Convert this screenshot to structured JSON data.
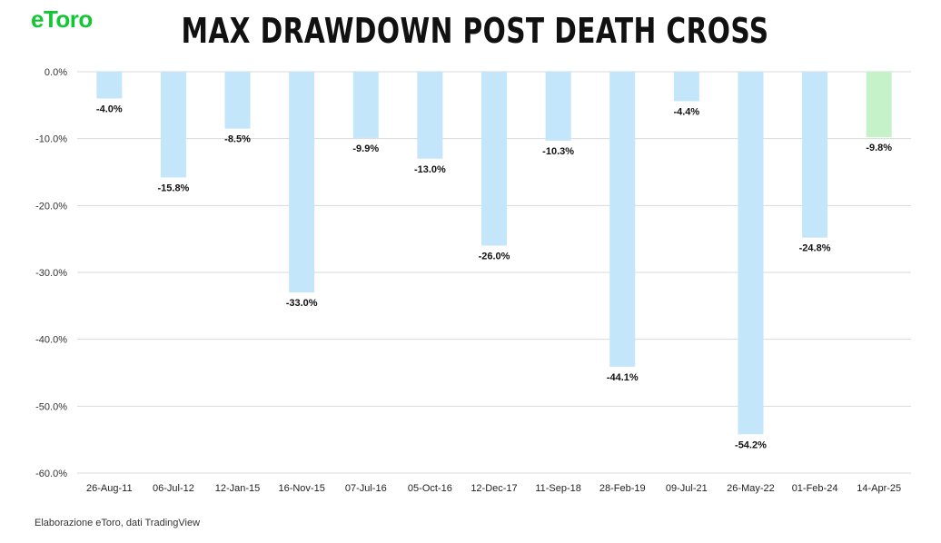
{
  "logo": {
    "text": "eToro"
  },
  "source": "Elaborazione eToro, dati TradingView",
  "colors": {
    "bar": "#c3e6fb",
    "highlight": "#c5f2c9",
    "grid": "#d9d9d9"
  },
  "chart_data": {
    "type": "bar",
    "title": "MAX DRAWDOWN POST DEATH CROSS",
    "xlabel": "",
    "ylabel": "",
    "ylim": [
      -60,
      0
    ],
    "yticks": [
      0,
      -10,
      -20,
      -30,
      -40,
      -50,
      -60
    ],
    "ytick_labels": [
      "0.0%",
      "-10.0%",
      "-20.0%",
      "-30.0%",
      "-40.0%",
      "-50.0%",
      "-60.0%"
    ],
    "grid": true,
    "legend": "none",
    "categories": [
      "26-Aug-11",
      "06-Jul-12",
      "12-Jan-15",
      "16-Nov-15",
      "07-Jul-16",
      "05-Oct-16",
      "12-Dec-17",
      "11-Sep-18",
      "28-Feb-19",
      "09-Jul-21",
      "26-May-22",
      "01-Feb-24",
      "14-Apr-25"
    ],
    "values": [
      -4.0,
      -15.8,
      -8.5,
      -33.0,
      -9.9,
      -13.0,
      -26.0,
      -10.3,
      -44.1,
      -4.4,
      -54.2,
      -24.8,
      -9.8
    ],
    "data_labels": [
      "-4.0%",
      "-15.8%",
      "-8.5%",
      "-33.0%",
      "-9.9%",
      "-13.0%",
      "-26.0%",
      "-10.3%",
      "-44.1%",
      "-4.4%",
      "-54.2%",
      "-24.8%",
      "-9.8%"
    ],
    "highlight_category": "14-Apr-25"
  }
}
